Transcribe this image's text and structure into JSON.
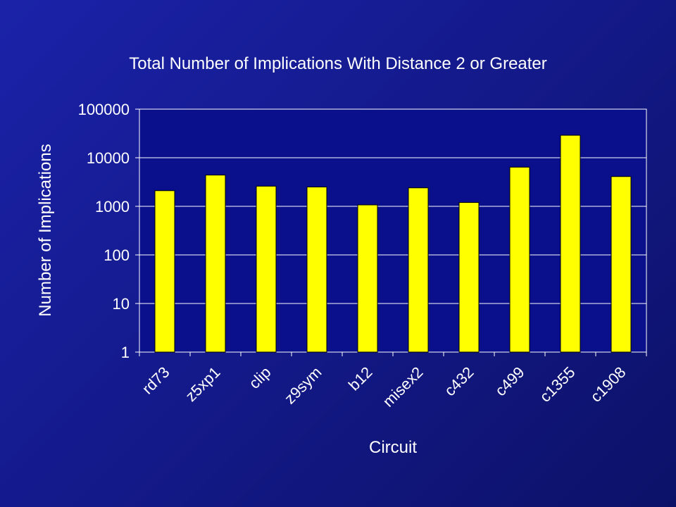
{
  "chart_data": {
    "type": "bar",
    "title": "Total Number of Implications With Distance 2 or Greater",
    "xlabel": "Circuit",
    "ylabel": "Number of Implications",
    "y_scale": "log",
    "ylim": [
      1,
      100000
    ],
    "y_ticks": [
      1,
      10,
      100,
      1000,
      10000,
      100000
    ],
    "y_tick_labels": [
      "1",
      "10",
      "100",
      "1000",
      "10000",
      "100000"
    ],
    "categories": [
      "rd73",
      "z5xp1",
      "clip",
      "z9sym",
      "b12",
      "misex2",
      "c432",
      "c499",
      "c1355",
      "c1908"
    ],
    "values": [
      2100,
      4400,
      2600,
      2500,
      1070,
      2400,
      1200,
      6400,
      29000,
      4100
    ],
    "grid": true,
    "legend": "none",
    "colors": {
      "bar": "#ffff00",
      "plot_background": "#0a0f8c",
      "grid": "#ffffff",
      "text": "#ffffff"
    }
  }
}
